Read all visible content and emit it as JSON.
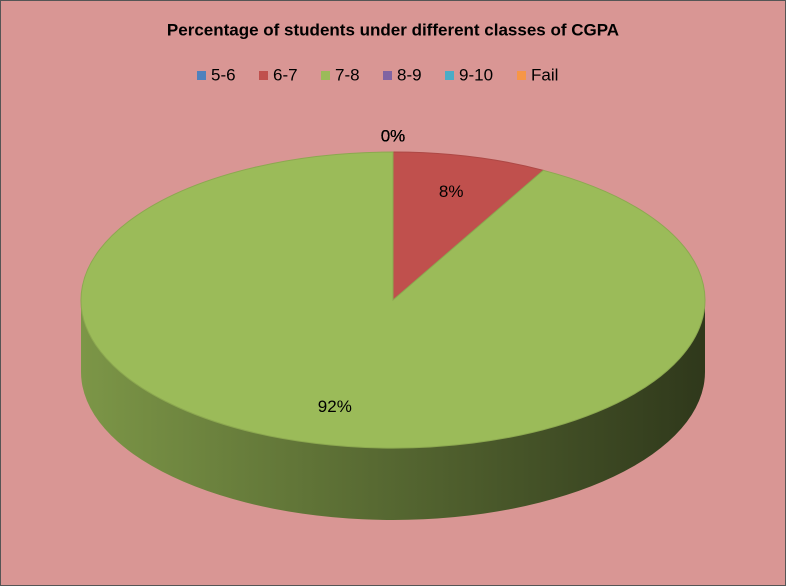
{
  "chart_data": {
    "type": "pie",
    "title": "Percentage of students under different classes of CGPA",
    "categories": [
      "5-6",
      "6-7",
      "7-8",
      "8-9",
      "9-10",
      "Fail"
    ],
    "values": [
      0,
      8,
      92,
      0,
      0,
      0
    ],
    "value_labels": [
      "0%",
      "8%",
      "92%",
      "0%",
      "0%",
      "0%"
    ],
    "colors": [
      "#4f81bd",
      "#c0504d",
      "#9bbb59",
      "#8064a2",
      "#4bacc6",
      "#f79646"
    ],
    "legend": "top"
  }
}
